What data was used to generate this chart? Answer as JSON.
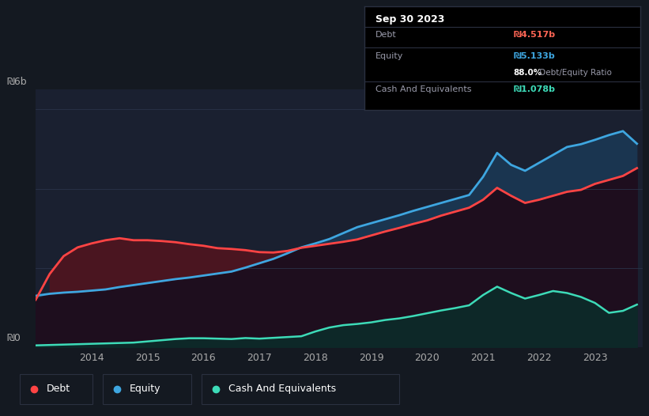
{
  "bg_color": "#141921",
  "plot_bg_color": "#1a2030",
  "grid_color": "#2a3348",
  "debt_color": "#ff4444",
  "equity_color": "#3ea6e0",
  "cash_color": "#3ddbb8",
  "debt_fill_color": "#5a1a1a",
  "equity_fill_color": "#1a3a5a",
  "cash_fill_color": "#0d2a28",
  "overlap_fill_color": "#2a1530",
  "tooltip_bg": "#000000",
  "tooltip_border": "#2a3040",
  "legend_border": "#2a3040",
  "text_color": "#aaaaaa",
  "white": "#ffffff",
  "ytick_labels": [
    "₪6b",
    "₪0"
  ],
  "ytick_vals": [
    6000000000,
    0
  ],
  "xtick_years": [
    2014,
    2015,
    2016,
    2017,
    2018,
    2019,
    2020,
    2021,
    2022,
    2023
  ],
  "ylim_max": 6500000000,
  "tooltip": {
    "date": "Sep 30 2023",
    "debt_label": "Debt",
    "debt_val": "₪4.517b",
    "equity_label": "Equity",
    "equity_val": "₪5.133b",
    "ratio_bold": "88.0%",
    "ratio_rest": " Debt/Equity Ratio",
    "cash_label": "Cash And Equivalents",
    "cash_val": "₪1.078b",
    "debt_color": "#ff6655",
    "equity_color": "#3ea6e0",
    "cash_color": "#3ddbb8",
    "label_color": "#999aaa",
    "ratio_color": "#999aaa"
  },
  "legend_items": [
    {
      "label": "Debt",
      "color": "#ff4444"
    },
    {
      "label": "Equity",
      "color": "#3ea6e0"
    },
    {
      "label": "Cash And Equivalents",
      "color": "#3ddbb8"
    }
  ],
  "years": [
    2013.0,
    2013.25,
    2013.5,
    2013.75,
    2014.0,
    2014.25,
    2014.5,
    2014.75,
    2015.0,
    2015.25,
    2015.5,
    2015.75,
    2016.0,
    2016.25,
    2016.5,
    2016.75,
    2017.0,
    2017.25,
    2017.5,
    2017.75,
    2018.0,
    2018.25,
    2018.5,
    2018.75,
    2019.0,
    2019.25,
    2019.5,
    2019.75,
    2020.0,
    2020.25,
    2020.5,
    2020.75,
    2021.0,
    2021.25,
    2021.5,
    2021.75,
    2022.0,
    2022.25,
    2022.5,
    2022.75,
    2023.0,
    2023.25,
    2023.5,
    2023.75
  ],
  "debt": [
    1200000000,
    1850000000,
    2300000000,
    2520000000,
    2620000000,
    2700000000,
    2750000000,
    2700000000,
    2700000000,
    2680000000,
    2650000000,
    2600000000,
    2560000000,
    2500000000,
    2480000000,
    2450000000,
    2400000000,
    2390000000,
    2430000000,
    2510000000,
    2560000000,
    2610000000,
    2660000000,
    2720000000,
    2820000000,
    2920000000,
    3010000000,
    3110000000,
    3200000000,
    3320000000,
    3420000000,
    3520000000,
    3720000000,
    4020000000,
    3820000000,
    3640000000,
    3720000000,
    3820000000,
    3920000000,
    3970000000,
    4120000000,
    4220000000,
    4320000000,
    4517000000
  ],
  "equity": [
    1300000000,
    1350000000,
    1380000000,
    1400000000,
    1430000000,
    1460000000,
    1520000000,
    1570000000,
    1620000000,
    1670000000,
    1720000000,
    1760000000,
    1810000000,
    1860000000,
    1910000000,
    2010000000,
    2120000000,
    2230000000,
    2370000000,
    2520000000,
    2620000000,
    2730000000,
    2880000000,
    3030000000,
    3130000000,
    3230000000,
    3330000000,
    3440000000,
    3540000000,
    3640000000,
    3740000000,
    3840000000,
    4300000000,
    4900000000,
    4600000000,
    4450000000,
    4650000000,
    4850000000,
    5050000000,
    5120000000,
    5230000000,
    5350000000,
    5450000000,
    5133000000
  ],
  "cash": [
    50000000,
    60000000,
    70000000,
    80000000,
    90000000,
    100000000,
    110000000,
    120000000,
    150000000,
    180000000,
    210000000,
    230000000,
    230000000,
    220000000,
    210000000,
    235000000,
    220000000,
    240000000,
    260000000,
    280000000,
    400000000,
    500000000,
    560000000,
    590000000,
    630000000,
    690000000,
    730000000,
    790000000,
    860000000,
    930000000,
    990000000,
    1060000000,
    1320000000,
    1530000000,
    1370000000,
    1230000000,
    1320000000,
    1420000000,
    1370000000,
    1270000000,
    1120000000,
    870000000,
    920000000,
    1078000000
  ]
}
